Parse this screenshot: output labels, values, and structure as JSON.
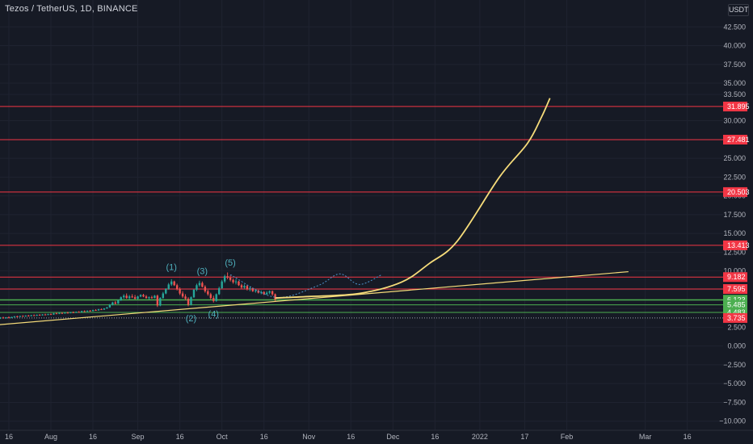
{
  "header": {
    "symbol_title": "Tezos / TetherUS, 1D, BINANCE",
    "currency": "USDT"
  },
  "colors": {
    "background": "#161a25",
    "grid": "#1f2330",
    "up": "#26a69a",
    "down": "#ef5350",
    "resistance": "#f23645",
    "support": "#4caf50",
    "trendline": "#f6dc7a",
    "projection": "#f6dc7a",
    "wave_label": "#4fb0bd",
    "path_dashed": "#4a90c8",
    "current_price": "#9aa0aa"
  },
  "chart_data": {
    "type": "candlestick",
    "y_axis": {
      "ticks": [
        "42.500",
        "40.000",
        "37.500",
        "35.000",
        "33.500",
        "30.000",
        "27.500",
        "25.000",
        "22.500",
        "20.000",
        "17.500",
        "15.000",
        "12.500",
        "10.000",
        "7.500",
        "5.000",
        "2.500",
        "0.000",
        "−2.500",
        "−5.000",
        "−7.500",
        "−10.000"
      ],
      "tick_values": [
        42.5,
        40,
        37.5,
        35,
        33.5,
        30,
        27.5,
        25,
        22.5,
        20,
        17.5,
        15,
        12.5,
        10,
        7.5,
        5,
        2.5,
        0,
        -2.5,
        -5,
        -7.5,
        -10
      ],
      "range": [
        -11.0,
        45.0
      ]
    },
    "x_axis": {
      "ticks": [
        "16",
        "Aug",
        "16",
        "Sep",
        "16",
        "Oct",
        "16",
        "Nov",
        "16",
        "Dec",
        "16",
        "2022",
        "17",
        "Feb",
        "Mar",
        "16"
      ],
      "tick_days": [
        -15,
        0,
        15,
        31,
        46,
        61,
        76,
        92,
        107,
        122,
        137,
        153,
        169,
        184,
        212,
        227
      ]
    },
    "horizontal_levels": [
      {
        "label": "31.895",
        "value": 31.895,
        "kind": "resistance"
      },
      {
        "label": "27.481",
        "value": 27.481,
        "kind": "resistance"
      },
      {
        "label": "20.503",
        "value": 20.503,
        "kind": "resistance"
      },
      {
        "label": "13.413",
        "value": 13.413,
        "kind": "resistance"
      },
      {
        "label": "9.182",
        "value": 9.182,
        "kind": "resistance"
      },
      {
        "label": "7.595",
        "value": 7.595,
        "kind": "resistance"
      },
      {
        "label": "6.173",
        "value": 6.173,
        "kind": "support"
      },
      {
        "label": "6.123",
        "value": 6.123,
        "kind": "support"
      },
      {
        "label": "5.485",
        "value": 5.485,
        "kind": "support"
      },
      {
        "label": "4.483",
        "value": 4.483,
        "kind": "support"
      },
      {
        "label": "3.735",
        "value": 3.735,
        "kind": "current"
      }
    ],
    "wave_labels": [
      {
        "text": "(1)",
        "x": 43,
        "y": 10.1
      },
      {
        "text": "(2)",
        "x": 50,
        "y": 3.3
      },
      {
        "text": "(3)",
        "x": 54,
        "y": 9.6
      },
      {
        "text": "(4)",
        "x": 58,
        "y": 3.9
      },
      {
        "text": "(5)",
        "x": 64,
        "y": 10.7
      }
    ],
    "trendline": {
      "from": [
        -23,
        2.7
      ],
      "to": [
        206,
        9.9
      ]
    },
    "projection_curve": [
      [
        80,
        6.4
      ],
      [
        92,
        6.6
      ],
      [
        110,
        7.0
      ],
      [
        125,
        8.5
      ],
      [
        135,
        11.0
      ],
      [
        145,
        14.0
      ],
      [
        160,
        22.5
      ],
      [
        170,
        27.0
      ],
      [
        175,
        30.5
      ],
      [
        178,
        33.0
      ]
    ],
    "dashed_path": [
      [
        64,
        9.5
      ],
      [
        80,
        6.5
      ],
      [
        95,
        8.0
      ],
      [
        103,
        9.6
      ],
      [
        110,
        8.2
      ],
      [
        118,
        9.5
      ]
    ],
    "candles": [
      {
        "x": -27,
        "o": 4.05,
        "h": 4.12,
        "l": 3.95,
        "c": 4.0
      },
      {
        "x": -26,
        "o": 4.0,
        "h": 4.05,
        "l": 3.8,
        "c": 3.85
      },
      {
        "x": -25,
        "o": 3.85,
        "h": 3.9,
        "l": 3.55,
        "c": 3.6
      },
      {
        "x": -24,
        "o": 3.6,
        "h": 3.7,
        "l": 3.4,
        "c": 3.5
      },
      {
        "x": -23,
        "o": 3.5,
        "h": 3.6,
        "l": 3.3,
        "c": 3.4
      },
      {
        "x": -22,
        "o": 3.4,
        "h": 3.55,
        "l": 3.3,
        "c": 3.5
      },
      {
        "x": -21,
        "o": 3.5,
        "h": 3.7,
        "l": 3.45,
        "c": 3.65
      },
      {
        "x": -20,
        "o": 3.65,
        "h": 3.75,
        "l": 3.5,
        "c": 3.55
      },
      {
        "x": -19,
        "o": 3.55,
        "h": 3.7,
        "l": 3.5,
        "c": 3.68
      },
      {
        "x": -18,
        "o": 3.68,
        "h": 3.85,
        "l": 3.6,
        "c": 3.8
      },
      {
        "x": -17,
        "o": 3.8,
        "h": 3.9,
        "l": 3.65,
        "c": 3.7
      },
      {
        "x": -16,
        "o": 3.7,
        "h": 3.85,
        "l": 3.65,
        "c": 3.82
      },
      {
        "x": -15,
        "o": 3.82,
        "h": 3.95,
        "l": 3.7,
        "c": 3.75
      },
      {
        "x": -14,
        "o": 3.75,
        "h": 3.9,
        "l": 3.7,
        "c": 3.88
      },
      {
        "x": -13,
        "o": 3.88,
        "h": 4.0,
        "l": 3.8,
        "c": 3.95
      },
      {
        "x": -12,
        "o": 3.95,
        "h": 4.05,
        "l": 3.85,
        "c": 3.9
      },
      {
        "x": -11,
        "o": 3.9,
        "h": 4.05,
        "l": 3.85,
        "c": 4.0
      },
      {
        "x": -10,
        "o": 4.0,
        "h": 4.1,
        "l": 3.9,
        "c": 3.95
      },
      {
        "x": -9,
        "o": 3.95,
        "h": 4.1,
        "l": 3.9,
        "c": 4.05
      },
      {
        "x": -8,
        "o": 4.05,
        "h": 4.15,
        "l": 3.95,
        "c": 4.0
      },
      {
        "x": -7,
        "o": 4.0,
        "h": 4.15,
        "l": 3.95,
        "c": 4.1
      },
      {
        "x": -6,
        "o": 4.1,
        "h": 4.2,
        "l": 4.0,
        "c": 4.05
      },
      {
        "x": -5,
        "o": 4.05,
        "h": 4.2,
        "l": 4.0,
        "c": 4.15
      },
      {
        "x": -4,
        "o": 4.15,
        "h": 4.25,
        "l": 4.05,
        "c": 4.1
      },
      {
        "x": -3,
        "o": 4.1,
        "h": 4.25,
        "l": 4.05,
        "c": 4.2
      },
      {
        "x": -2,
        "o": 4.2,
        "h": 4.3,
        "l": 4.1,
        "c": 4.15
      },
      {
        "x": -1,
        "o": 4.15,
        "h": 4.3,
        "l": 4.1,
        "c": 4.25
      },
      {
        "x": 0,
        "o": 4.25,
        "h": 4.35,
        "l": 4.15,
        "c": 4.2
      },
      {
        "x": 1,
        "o": 4.2,
        "h": 4.4,
        "l": 4.15,
        "c": 4.35
      },
      {
        "x": 2,
        "o": 4.35,
        "h": 4.45,
        "l": 4.25,
        "c": 4.3
      },
      {
        "x": 3,
        "o": 4.3,
        "h": 4.45,
        "l": 4.25,
        "c": 4.4
      },
      {
        "x": 4,
        "o": 4.4,
        "h": 4.5,
        "l": 4.3,
        "c": 4.35
      },
      {
        "x": 5,
        "o": 4.35,
        "h": 4.5,
        "l": 4.3,
        "c": 4.45
      },
      {
        "x": 6,
        "o": 4.45,
        "h": 4.55,
        "l": 4.35,
        "c": 4.4
      },
      {
        "x": 7,
        "o": 4.4,
        "h": 4.55,
        "l": 4.35,
        "c": 4.5
      },
      {
        "x": 8,
        "o": 4.5,
        "h": 4.6,
        "l": 4.4,
        "c": 4.45
      },
      {
        "x": 9,
        "o": 4.45,
        "h": 4.6,
        "l": 4.4,
        "c": 4.55
      },
      {
        "x": 10,
        "o": 4.55,
        "h": 4.65,
        "l": 4.45,
        "c": 4.5
      },
      {
        "x": 11,
        "o": 4.5,
        "h": 4.7,
        "l": 4.45,
        "c": 4.65
      },
      {
        "x": 12,
        "o": 4.65,
        "h": 4.75,
        "l": 4.55,
        "c": 4.6
      },
      {
        "x": 13,
        "o": 4.6,
        "h": 4.75,
        "l": 4.55,
        "c": 4.7
      },
      {
        "x": 14,
        "o": 4.7,
        "h": 4.8,
        "l": 4.6,
        "c": 4.65
      },
      {
        "x": 15,
        "o": 4.65,
        "h": 4.85,
        "l": 4.6,
        "c": 4.8
      },
      {
        "x": 16,
        "o": 4.8,
        "h": 4.9,
        "l": 4.7,
        "c": 4.75
      },
      {
        "x": 17,
        "o": 4.75,
        "h": 4.95,
        "l": 4.7,
        "c": 4.9
      },
      {
        "x": 18,
        "o": 4.9,
        "h": 5.0,
        "l": 4.8,
        "c": 4.85
      },
      {
        "x": 19,
        "o": 4.85,
        "h": 5.05,
        "l": 4.8,
        "c": 5.0
      },
      {
        "x": 20,
        "o": 5.0,
        "h": 5.2,
        "l": 4.95,
        "c": 5.15
      },
      {
        "x": 21,
        "o": 5.15,
        "h": 5.6,
        "l": 5.1,
        "c": 5.5
      },
      {
        "x": 22,
        "o": 5.5,
        "h": 5.9,
        "l": 5.4,
        "c": 5.8
      },
      {
        "x": 23,
        "o": 5.8,
        "h": 6.0,
        "l": 5.55,
        "c": 5.65
      },
      {
        "x": 24,
        "o": 5.65,
        "h": 6.2,
        "l": 5.6,
        "c": 6.1
      },
      {
        "x": 25,
        "o": 6.1,
        "h": 6.6,
        "l": 6.0,
        "c": 6.5
      },
      {
        "x": 26,
        "o": 6.5,
        "h": 6.9,
        "l": 6.3,
        "c": 6.7
      },
      {
        "x": 27,
        "o": 6.7,
        "h": 7.0,
        "l": 6.3,
        "c": 6.4
      },
      {
        "x": 28,
        "o": 6.4,
        "h": 6.8,
        "l": 6.2,
        "c": 6.6
      },
      {
        "x": 29,
        "o": 6.6,
        "h": 6.9,
        "l": 6.4,
        "c": 6.5
      },
      {
        "x": 30,
        "o": 6.5,
        "h": 6.8,
        "l": 6.2,
        "c": 6.3
      },
      {
        "x": 31,
        "o": 6.3,
        "h": 6.7,
        "l": 6.2,
        "c": 6.6
      },
      {
        "x": 32,
        "o": 6.6,
        "h": 6.9,
        "l": 6.5,
        "c": 6.8
      },
      {
        "x": 33,
        "o": 6.8,
        "h": 6.95,
        "l": 6.5,
        "c": 6.6
      },
      {
        "x": 34,
        "o": 6.6,
        "h": 6.8,
        "l": 6.3,
        "c": 6.4
      },
      {
        "x": 35,
        "o": 6.4,
        "h": 6.6,
        "l": 6.2,
        "c": 6.5
      },
      {
        "x": 36,
        "o": 6.5,
        "h": 6.7,
        "l": 6.3,
        "c": 6.4
      },
      {
        "x": 37,
        "o": 6.4,
        "h": 6.8,
        "l": 6.35,
        "c": 6.7
      },
      {
        "x": 38,
        "o": 6.7,
        "h": 6.85,
        "l": 5.2,
        "c": 5.4
      },
      {
        "x": 39,
        "o": 5.4,
        "h": 6.5,
        "l": 5.3,
        "c": 6.4
      },
      {
        "x": 40,
        "o": 6.4,
        "h": 7.2,
        "l": 6.3,
        "c": 7.0
      },
      {
        "x": 41,
        "o": 7.0,
        "h": 7.7,
        "l": 6.9,
        "c": 7.6
      },
      {
        "x": 42,
        "o": 7.6,
        "h": 8.4,
        "l": 7.5,
        "c": 8.2
      },
      {
        "x": 43,
        "o": 8.2,
        "h": 8.9,
        "l": 8.0,
        "c": 8.6
      },
      {
        "x": 44,
        "o": 8.6,
        "h": 8.7,
        "l": 8.0,
        "c": 8.1
      },
      {
        "x": 45,
        "o": 8.1,
        "h": 8.3,
        "l": 7.4,
        "c": 7.6
      },
      {
        "x": 46,
        "o": 7.6,
        "h": 7.8,
        "l": 6.8,
        "c": 7.0
      },
      {
        "x": 47,
        "o": 7.0,
        "h": 7.3,
        "l": 6.4,
        "c": 6.6
      },
      {
        "x": 48,
        "o": 6.6,
        "h": 6.9,
        "l": 6.1,
        "c": 6.3
      },
      {
        "x": 49,
        "o": 6.3,
        "h": 6.5,
        "l": 5.3,
        "c": 5.5
      },
      {
        "x": 50,
        "o": 5.5,
        "h": 6.6,
        "l": 5.4,
        "c": 6.5
      },
      {
        "x": 51,
        "o": 6.5,
        "h": 7.6,
        "l": 6.4,
        "c": 7.5
      },
      {
        "x": 52,
        "o": 7.5,
        "h": 8.3,
        "l": 7.3,
        "c": 8.1
      },
      {
        "x": 53,
        "o": 8.1,
        "h": 8.7,
        "l": 7.9,
        "c": 8.4
      },
      {
        "x": 54,
        "o": 8.4,
        "h": 8.6,
        "l": 7.8,
        "c": 7.9
      },
      {
        "x": 55,
        "o": 7.9,
        "h": 8.1,
        "l": 7.1,
        "c": 7.3
      },
      {
        "x": 56,
        "o": 7.3,
        "h": 7.5,
        "l": 6.7,
        "c": 6.9
      },
      {
        "x": 57,
        "o": 6.9,
        "h": 7.1,
        "l": 6.2,
        "c": 6.4
      },
      {
        "x": 58,
        "o": 6.4,
        "h": 6.7,
        "l": 5.8,
        "c": 6.0
      },
      {
        "x": 59,
        "o": 6.0,
        "h": 7.0,
        "l": 5.9,
        "c": 6.9
      },
      {
        "x": 60,
        "o": 6.9,
        "h": 7.9,
        "l": 6.8,
        "c": 7.7
      },
      {
        "x": 61,
        "o": 7.7,
        "h": 8.8,
        "l": 7.6,
        "c": 8.6
      },
      {
        "x": 62,
        "o": 8.6,
        "h": 9.5,
        "l": 8.4,
        "c": 9.3
      },
      {
        "x": 63,
        "o": 9.3,
        "h": 9.8,
        "l": 8.9,
        "c": 9.1
      },
      {
        "x": 64,
        "o": 9.1,
        "h": 9.4,
        "l": 8.6,
        "c": 8.8
      },
      {
        "x": 65,
        "o": 8.8,
        "h": 9.0,
        "l": 8.3,
        "c": 8.5
      },
      {
        "x": 66,
        "o": 8.5,
        "h": 8.9,
        "l": 8.2,
        "c": 8.6
      },
      {
        "x": 67,
        "o": 8.6,
        "h": 8.7,
        "l": 8.0,
        "c": 8.1
      },
      {
        "x": 68,
        "o": 8.1,
        "h": 8.3,
        "l": 7.6,
        "c": 7.8
      },
      {
        "x": 69,
        "o": 7.8,
        "h": 8.2,
        "l": 7.6,
        "c": 8.0
      },
      {
        "x": 70,
        "o": 8.0,
        "h": 8.1,
        "l": 7.4,
        "c": 7.6
      },
      {
        "x": 71,
        "o": 7.6,
        "h": 7.9,
        "l": 7.3,
        "c": 7.7
      },
      {
        "x": 72,
        "o": 7.7,
        "h": 7.8,
        "l": 7.2,
        "c": 7.3
      },
      {
        "x": 73,
        "o": 7.3,
        "h": 7.6,
        "l": 7.1,
        "c": 7.4
      },
      {
        "x": 74,
        "o": 7.4,
        "h": 7.5,
        "l": 7.0,
        "c": 7.1
      },
      {
        "x": 75,
        "o": 7.1,
        "h": 7.4,
        "l": 6.9,
        "c": 7.2
      },
      {
        "x": 76,
        "o": 7.2,
        "h": 7.3,
        "l": 6.8,
        "c": 6.9
      },
      {
        "x": 77,
        "o": 6.9,
        "h": 7.3,
        "l": 6.8,
        "c": 7.1
      },
      {
        "x": 78,
        "o": 7.1,
        "h": 7.4,
        "l": 6.9,
        "c": 7.3
      },
      {
        "x": 79,
        "o": 7.3,
        "h": 7.4,
        "l": 6.7,
        "c": 6.9
      },
      {
        "x": 80,
        "o": 6.9,
        "h": 7.0,
        "l": 5.9,
        "c": 6.2
      }
    ]
  }
}
